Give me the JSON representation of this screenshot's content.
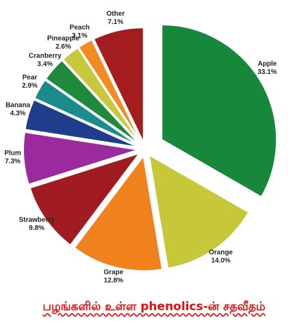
{
  "chart_data": {
    "type": "pie",
    "title": "பழங்களில் உள்ள phenolics-ன் சதவீதம்",
    "categories": [
      "Apple",
      "Orange",
      "Grape",
      "Strawberry",
      "Plum",
      "Banana",
      "Pear",
      "Cranberry",
      "Pineapple",
      "Peach",
      "Other"
    ],
    "values": [
      33.1,
      14.0,
      12.8,
      9.8,
      7.3,
      4.3,
      2.9,
      3.4,
      2.6,
      2.1,
      7.1
    ],
    "value_labels": [
      "33.1%",
      "14.0%",
      "12.8%",
      "9.8%",
      "7.3%",
      "4.3%",
      "2.9%",
      "3.4%",
      "2.6%",
      "2.1%",
      "7.1%"
    ],
    "colors": [
      "#17873c",
      "#c6c83a",
      "#f0821e",
      "#a11b22",
      "#9b2a9e",
      "#1f3d8a",
      "#1b8c8c",
      "#1f8a3c",
      "#c8c83c",
      "#f28c22",
      "#a31c1e"
    ]
  }
}
